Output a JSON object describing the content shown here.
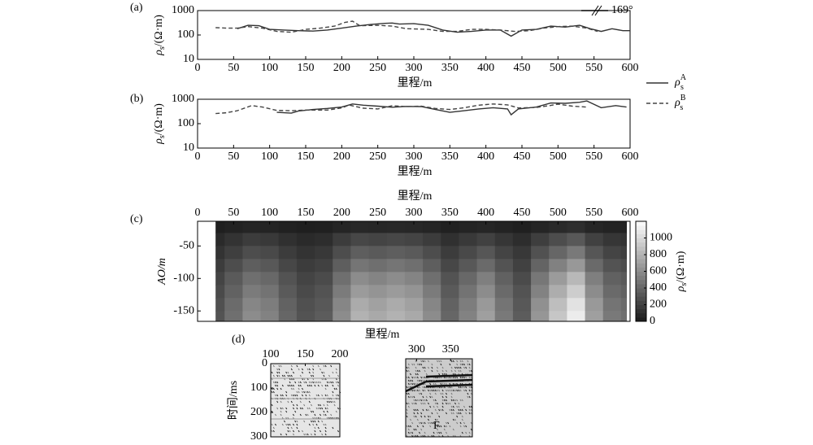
{
  "chart_data": [
    {
      "type": "line",
      "panel": "(a)",
      "log": true,
      "ylabel": {
        "symbol": "ρ",
        "sub": "s",
        "unit": "/(Ω·m)"
      },
      "xlabel": "里程/m",
      "xlim": [
        0,
        600
      ],
      "xticks": [
        0,
        50,
        100,
        150,
        200,
        250,
        300,
        350,
        400,
        450,
        500,
        550,
        600
      ],
      "ylim": [
        10,
        1000
      ],
      "yticks": [
        10,
        100,
        1000
      ],
      "annotation": "169°",
      "series": [
        {
          "style": "solid",
          "color": "#333333",
          "x": [
            55,
            70,
            85,
            100,
            120,
            140,
            160,
            180,
            200,
            220,
            240,
            260,
            270,
            280,
            300,
            320,
            340,
            360,
            380,
            400,
            420,
            435,
            450,
            470,
            490,
            510,
            530,
            545,
            560,
            575,
            590,
            600
          ],
          "values": [
            180,
            250,
            240,
            170,
            160,
            150,
            145,
            160,
            190,
            230,
            270,
            300,
            310,
            280,
            290,
            250,
            160,
            130,
            140,
            160,
            160,
            90,
            160,
            170,
            230,
            210,
            250,
            180,
            140,
            180,
            150,
            150
          ]
        },
        {
          "style": "dashed",
          "color": "#444444",
          "x": [
            25,
            40,
            55,
            70,
            90,
            110,
            130,
            150,
            170,
            190,
            205,
            215,
            225,
            250,
            270,
            290,
            320,
            340,
            360,
            380,
            400,
            420,
            440,
            460,
            480,
            500,
            520,
            540,
            555
          ],
          "values": [
            200,
            190,
            190,
            220,
            190,
            140,
            130,
            170,
            190,
            230,
            330,
            370,
            240,
            250,
            230,
            180,
            170,
            140,
            140,
            170,
            170,
            160,
            140,
            150,
            190,
            220,
            230,
            190,
            140
          ]
        }
      ]
    },
    {
      "type": "line",
      "panel": "(b)",
      "log": true,
      "ylabel": {
        "symbol": "ρ",
        "sub": "s",
        "unit": "/(Ω·m)"
      },
      "xlabel": "里程/m",
      "xlim": [
        0,
        600
      ],
      "xticks": [
        0,
        50,
        100,
        150,
        200,
        250,
        300,
        350,
        400,
        450,
        500,
        550,
        600
      ],
      "ylim": [
        10,
        1000
      ],
      "yticks": [
        10,
        100,
        1000
      ],
      "series": [
        {
          "name": {
            "symbol": "ρ",
            "sub": "s",
            "sup": "A"
          },
          "style": "solid",
          "color": "#333333",
          "x": [
            110,
            130,
            140,
            160,
            180,
            200,
            215,
            230,
            250,
            270,
            290,
            310,
            330,
            350,
            370,
            390,
            410,
            430,
            435,
            445,
            470,
            490,
            510,
            530,
            540,
            560,
            580,
            595
          ],
          "values": [
            290,
            270,
            330,
            380,
            420,
            480,
            640,
            570,
            520,
            470,
            510,
            500,
            380,
            290,
            340,
            400,
            450,
            400,
            230,
            400,
            480,
            700,
            680,
            750,
            850,
            450,
            550,
            480
          ]
        },
        {
          "name": {
            "symbol": "ρ",
            "sub": "s",
            "sup": "B"
          },
          "style": "dashed",
          "color": "#444444",
          "x": [
            25,
            40,
            55,
            75,
            90,
            110,
            130,
            150,
            180,
            200,
            210,
            230,
            250,
            270,
            290,
            310,
            330,
            350,
            370,
            390,
            410,
            430,
            445,
            470,
            490,
            500,
            520,
            540
          ],
          "values": [
            260,
            280,
            340,
            550,
            480,
            350,
            340,
            360,
            360,
            440,
            580,
            430,
            400,
            540,
            500,
            520,
            420,
            380,
            450,
            570,
            640,
            590,
            440,
            460,
            560,
            630,
            520,
            480
          ]
        }
      ]
    },
    {
      "type": "contour",
      "panel": "(c)",
      "xlabel": "里程/m",
      "xlabel_bottom": "里程/m",
      "ylabel": "AO/m",
      "cbar_label": {
        "symbol": "ρ",
        "sub": "s",
        "unit": "/(Ω·m)"
      },
      "xlim": [
        0,
        600
      ],
      "xticks": [
        0,
        50,
        100,
        150,
        200,
        250,
        300,
        350,
        400,
        450,
        500,
        550,
        600
      ],
      "ylim": [
        -166,
        -12
      ],
      "yticks": [
        -50,
        -100,
        -150
      ],
      "clim": [
        0,
        1200
      ],
      "cticks": [
        0,
        200,
        400,
        600,
        800,
        1000
      ],
      "x": [
        25,
        50,
        75,
        100,
        125,
        150,
        175,
        200,
        225,
        250,
        275,
        300,
        325,
        350,
        375,
        400,
        425,
        450,
        475,
        500,
        525,
        550,
        575,
        600
      ],
      "y": [
        -20,
        -40,
        -60,
        -80,
        -100,
        -120,
        -140,
        -160
      ],
      "z": [
        [
          30,
          45,
          60,
          55,
          40,
          30,
          35,
          60,
          80,
          75,
          80,
          75,
          60,
          40,
          55,
          70,
          50,
          35,
          65,
          90,
          110,
          70,
          50,
          45
        ],
        [
          90,
          135,
          180,
          165,
          120,
          90,
          105,
          180,
          240,
          225,
          240,
          225,
          180,
          120,
          165,
          210,
          150,
          105,
          195,
          270,
          330,
          210,
          150,
          135
        ],
        [
          135,
          200,
          270,
          250,
          180,
          135,
          160,
          270,
          360,
          340,
          360,
          340,
          270,
          180,
          250,
          320,
          225,
          160,
          290,
          400,
          500,
          320,
          225,
          200
        ],
        [
          180,
          270,
          360,
          330,
          240,
          180,
          210,
          360,
          480,
          450,
          480,
          450,
          360,
          240,
          330,
          420,
          300,
          210,
          390,
          540,
          660,
          420,
          300,
          270
        ],
        [
          225,
          340,
          450,
          410,
          300,
          225,
          260,
          450,
          600,
          560,
          600,
          560,
          450,
          300,
          410,
          530,
          375,
          260,
          490,
          680,
          830,
          530,
          375,
          340
        ],
        [
          255,
          380,
          510,
          470,
          340,
          255,
          300,
          510,
          680,
          640,
          680,
          640,
          510,
          340,
          470,
          600,
          425,
          300,
          550,
          770,
          940,
          600,
          425,
          380
        ],
        [
          285,
          430,
          570,
          520,
          380,
          285,
          330,
          570,
          760,
          710,
          760,
          710,
          570,
          380,
          520,
          670,
          475,
          330,
          620,
          860,
          1050,
          670,
          475,
          430
        ],
        [
          300,
          450,
          600,
          550,
          400,
          300,
          350,
          600,
          800,
          750,
          800,
          750,
          600,
          400,
          550,
          700,
          500,
          350,
          650,
          900,
          1100,
          700,
          500,
          450
        ]
      ]
    },
    {
      "type": "seismic",
      "panel": "(d)",
      "ylabel": "时间/ms",
      "ylim": [
        0,
        300
      ],
      "yticks": [
        0,
        100,
        200,
        300
      ],
      "images": [
        {
          "xlim": [
            100,
            200
          ],
          "xticks": [
            100,
            150,
            200
          ]
        },
        {
          "xlim": [
            284,
            382
          ],
          "xticks": [
            300,
            350
          ],
          "annotation": "F"
        }
      ]
    }
  ]
}
